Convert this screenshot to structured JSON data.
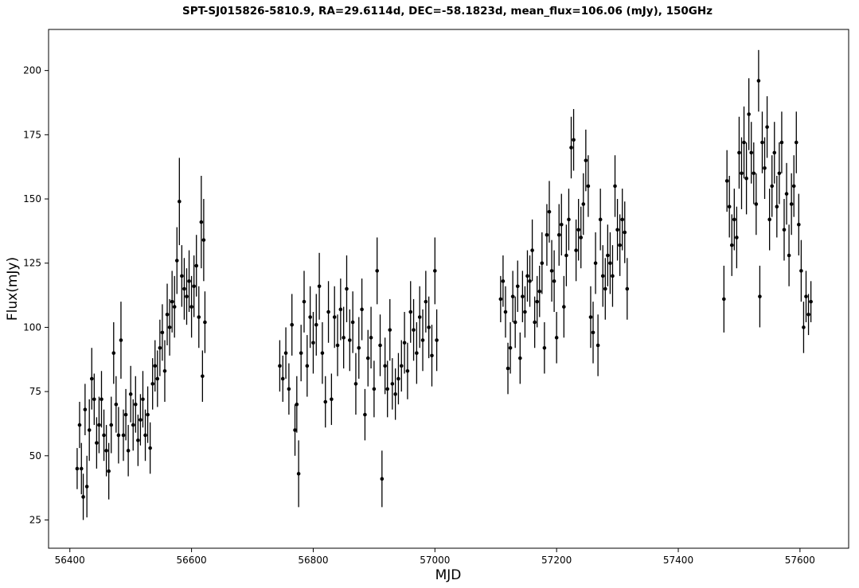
{
  "chart_data": {
    "type": "scatter",
    "title": "SPT-SJ015826-5810.9, RA=29.6114d, DEC=-58.1823d, mean_flux=106.06 (mJy), 150GHz",
    "xlabel": "MJD",
    "ylabel": "Flux(mJy)",
    "xlim": [
      56365,
      57680
    ],
    "ylim": [
      14,
      216
    ],
    "xticks": [
      56400,
      56600,
      56800,
      57000,
      57200,
      57400,
      57600
    ],
    "yticks": [
      25,
      50,
      75,
      100,
      125,
      150,
      175,
      200
    ],
    "grid": false,
    "marker": "circle",
    "color": "#000000",
    "series": [
      {
        "points": [
          [
            56412,
            45,
            8
          ],
          [
            56416,
            62,
            9
          ],
          [
            56419,
            45,
            10
          ],
          [
            56422,
            34,
            9
          ],
          [
            56425,
            68,
            10
          ],
          [
            56428,
            38,
            12
          ],
          [
            56432,
            60,
            12
          ],
          [
            56436,
            80,
            12
          ],
          [
            56440,
            72,
            10
          ],
          [
            56444,
            55,
            10
          ],
          [
            56448,
            62,
            11
          ],
          [
            56452,
            72,
            11
          ],
          [
            56456,
            58,
            10
          ],
          [
            56460,
            52,
            10
          ],
          [
            56464,
            44,
            11
          ],
          [
            56468,
            62,
            11
          ],
          [
            56472,
            90,
            12
          ],
          [
            56476,
            70,
            11
          ],
          [
            56480,
            58,
            11
          ],
          [
            56484,
            95,
            15
          ],
          [
            56488,
            58,
            10
          ],
          [
            56492,
            66,
            10
          ],
          [
            56496,
            52,
            10
          ],
          [
            56500,
            74,
            11
          ],
          [
            56504,
            62,
            10
          ],
          [
            56508,
            70,
            11
          ],
          [
            56512,
            56,
            10
          ],
          [
            56516,
            64,
            10
          ],
          [
            56520,
            72,
            11
          ],
          [
            56524,
            58,
            10
          ],
          [
            56528,
            66,
            11
          ],
          [
            56532,
            53,
            10
          ],
          [
            56536,
            78,
            10
          ],
          [
            56540,
            85,
            10
          ],
          [
            56544,
            80,
            11
          ],
          [
            56548,
            92,
            11
          ],
          [
            56552,
            98,
            11
          ],
          [
            56556,
            83,
            12
          ],
          [
            56560,
            105,
            12
          ],
          [
            56564,
            100,
            11
          ],
          [
            56568,
            110,
            12
          ],
          [
            56572,
            108,
            12
          ],
          [
            56576,
            126,
            13
          ],
          [
            56580,
            149,
            17
          ],
          [
            56584,
            120,
            12
          ],
          [
            56588,
            115,
            12
          ],
          [
            56592,
            112,
            11
          ],
          [
            56596,
            118,
            12
          ],
          [
            56600,
            108,
            12
          ],
          [
            56604,
            116,
            12
          ],
          [
            56608,
            124,
            12
          ],
          [
            56612,
            104,
            12
          ],
          [
            56616,
            141,
            18
          ],
          [
            56618,
            81,
            10
          ],
          [
            56620,
            134,
            16
          ],
          [
            56622,
            102,
            12
          ],
          [
            56745,
            85,
            10
          ],
          [
            56750,
            80,
            9
          ],
          [
            56755,
            90,
            10
          ],
          [
            56760,
            76,
            10
          ],
          [
            56765,
            101,
            12
          ],
          [
            56770,
            60,
            10
          ],
          [
            56773,
            70,
            11
          ],
          [
            56776,
            43,
            13
          ],
          [
            56780,
            90,
            11
          ],
          [
            56785,
            110,
            12
          ],
          [
            56790,
            85,
            12
          ],
          [
            56795,
            104,
            12
          ],
          [
            56800,
            94,
            12
          ],
          [
            56805,
            101,
            12
          ],
          [
            56810,
            116,
            13
          ],
          [
            56815,
            90,
            12
          ],
          [
            56820,
            71,
            10
          ],
          [
            56825,
            106,
            12
          ],
          [
            56830,
            72,
            10
          ],
          [
            56835,
            104,
            12
          ],
          [
            56840,
            93,
            12
          ],
          [
            56845,
            107,
            12
          ],
          [
            56850,
            96,
            12
          ],
          [
            56855,
            115,
            13
          ],
          [
            56860,
            95,
            12
          ],
          [
            56865,
            102,
            12
          ],
          [
            56870,
            78,
            12
          ],
          [
            56875,
            92,
            12
          ],
          [
            56880,
            107,
            12
          ],
          [
            56885,
            66,
            10
          ],
          [
            56890,
            88,
            11
          ],
          [
            56895,
            96,
            12
          ],
          [
            56900,
            76,
            11
          ],
          [
            56905,
            122,
            13
          ],
          [
            56910,
            93,
            12
          ],
          [
            56913,
            41,
            11
          ],
          [
            56918,
            85,
            11
          ],
          [
            56922,
            76,
            11
          ],
          [
            56926,
            99,
            12
          ],
          [
            56930,
            78,
            10
          ],
          [
            56935,
            74,
            10
          ],
          [
            56940,
            80,
            10
          ],
          [
            56945,
            85,
            10
          ],
          [
            56950,
            94,
            12
          ],
          [
            56955,
            83,
            11
          ],
          [
            56960,
            106,
            12
          ],
          [
            56965,
            99,
            12
          ],
          [
            56970,
            90,
            12
          ],
          [
            56975,
            104,
            12
          ],
          [
            56980,
            95,
            12
          ],
          [
            56985,
            110,
            12
          ],
          [
            56990,
            100,
            12
          ],
          [
            56995,
            89,
            12
          ],
          [
            57000,
            122,
            13
          ],
          [
            57003,
            95,
            12
          ],
          [
            57108,
            111,
            9
          ],
          [
            57112,
            118,
            10
          ],
          [
            57116,
            106,
            10
          ],
          [
            57120,
            84,
            10
          ],
          [
            57124,
            92,
            10
          ],
          [
            57128,
            112,
            10
          ],
          [
            57132,
            102,
            10
          ],
          [
            57136,
            116,
            10
          ],
          [
            57140,
            88,
            10
          ],
          [
            57144,
            112,
            10
          ],
          [
            57148,
            106,
            10
          ],
          [
            57152,
            120,
            10
          ],
          [
            57156,
            118,
            10
          ],
          [
            57160,
            130,
            12
          ],
          [
            57164,
            102,
            10
          ],
          [
            57168,
            110,
            10
          ],
          [
            57172,
            114,
            10
          ],
          [
            57176,
            125,
            12
          ],
          [
            57180,
            92,
            10
          ],
          [
            57184,
            136,
            12
          ],
          [
            57188,
            145,
            12
          ],
          [
            57192,
            122,
            12
          ],
          [
            57196,
            118,
            12
          ],
          [
            57200,
            96,
            10
          ],
          [
            57204,
            136,
            12
          ],
          [
            57208,
            140,
            12
          ],
          [
            57212,
            108,
            12
          ],
          [
            57216,
            128,
            12
          ],
          [
            57220,
            142,
            12
          ],
          [
            57224,
            170,
            12
          ],
          [
            57228,
            173,
            12
          ],
          [
            57232,
            130,
            12
          ],
          [
            57236,
            138,
            12
          ],
          [
            57240,
            135,
            12
          ],
          [
            57244,
            148,
            12
          ],
          [
            57248,
            165,
            12
          ],
          [
            57252,
            155,
            12
          ],
          [
            57256,
            104,
            12
          ],
          [
            57260,
            98,
            12
          ],
          [
            57264,
            125,
            12
          ],
          [
            57268,
            93,
            12
          ],
          [
            57272,
            142,
            12
          ],
          [
            57276,
            120,
            12
          ],
          [
            57280,
            115,
            12
          ],
          [
            57284,
            128,
            12
          ],
          [
            57288,
            125,
            12
          ],
          [
            57292,
            120,
            12
          ],
          [
            57296,
            155,
            12
          ],
          [
            57300,
            138,
            12
          ],
          [
            57304,
            132,
            12
          ],
          [
            57308,
            142,
            12
          ],
          [
            57312,
            137,
            12
          ],
          [
            57316,
            115,
            12
          ],
          [
            57475,
            111,
            13
          ],
          [
            57480,
            157,
            12
          ],
          [
            57484,
            147,
            12
          ],
          [
            57488,
            132,
            12
          ],
          [
            57492,
            142,
            12
          ],
          [
            57496,
            135,
            12
          ],
          [
            57500,
            168,
            14
          ],
          [
            57504,
            160,
            14
          ],
          [
            57508,
            172,
            14
          ],
          [
            57512,
            158,
            14
          ],
          [
            57516,
            183,
            14
          ],
          [
            57520,
            168,
            12
          ],
          [
            57524,
            160,
            12
          ],
          [
            57528,
            148,
            12
          ],
          [
            57532,
            196,
            12
          ],
          [
            57534,
            112,
            12
          ],
          [
            57538,
            172,
            12
          ],
          [
            57542,
            162,
            12
          ],
          [
            57546,
            178,
            12
          ],
          [
            57550,
            142,
            12
          ],
          [
            57554,
            155,
            12
          ],
          [
            57558,
            168,
            12
          ],
          [
            57562,
            147,
            12
          ],
          [
            57566,
            160,
            12
          ],
          [
            57570,
            172,
            12
          ],
          [
            57574,
            138,
            12
          ],
          [
            57578,
            152,
            12
          ],
          [
            57582,
            128,
            12
          ],
          [
            57586,
            148,
            12
          ],
          [
            57590,
            155,
            12
          ],
          [
            57594,
            172,
            12
          ],
          [
            57598,
            140,
            12
          ],
          [
            57602,
            122,
            12
          ],
          [
            57606,
            100,
            10
          ],
          [
            57610,
            112,
            10
          ],
          [
            57614,
            105,
            8
          ],
          [
            57618,
            110,
            8
          ]
        ]
      }
    ]
  }
}
